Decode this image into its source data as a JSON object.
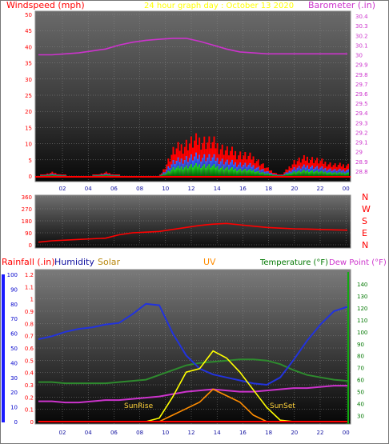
{
  "header": {
    "left_title": "Windspeed (mph)",
    "center_title": "24 hour graph day : October 13 2020",
    "right_title": "Barometer (.in)"
  },
  "colors": {
    "red": "#ff0000",
    "magenta": "#cc33cc",
    "yellow": "#ffff00",
    "blue": "#0000cc",
    "green": "#228b22",
    "orange": "#ff8c00",
    "dark_blue": "#1010a0",
    "olive": "#b8860b",
    "dark_green": "#007700"
  },
  "chart_data": [
    {
      "type": "line",
      "x_ticks": [
        "02",
        "04",
        "06",
        "08",
        "10",
        "12",
        "14",
        "16",
        "18",
        "20",
        "22",
        "00"
      ],
      "y_left_ticks": [
        "0",
        "5",
        "10",
        "15",
        "20",
        "25",
        "30",
        "35",
        "40",
        "45",
        "50"
      ],
      "y_left_range": [
        0,
        50
      ],
      "y_right_ticks": [
        "28.8",
        "28.9",
        "29",
        "29.1",
        "29.2",
        "29.3",
        "29.4",
        "29.5",
        "29.6",
        "29.7",
        "29.8",
        "29.9",
        "30",
        "30.1",
        "30.2",
        "30.3",
        "30.4"
      ],
      "y_right_range": [
        28.75,
        30.45
      ],
      "series": [
        {
          "name": "Barometer",
          "values": [
            30.0,
            30.0,
            30.01,
            30.02,
            30.04,
            30.06,
            30.1,
            30.13,
            30.15,
            30.16,
            30.17,
            30.17,
            30.14,
            30.1,
            30.06,
            30.03,
            30.02,
            30.01,
            30.01,
            30.01,
            30.01,
            30.01,
            30.01,
            30.01
          ]
        },
        {
          "name": "Windspeed",
          "values": [
            0,
            1,
            0,
            0,
            0,
            1,
            0,
            0,
            0,
            0,
            7,
            9,
            10,
            9,
            7,
            6,
            5,
            2,
            0,
            4,
            5,
            4,
            3,
            3
          ]
        }
      ]
    },
    {
      "type": "line",
      "x_ticks": [
        "02",
        "04",
        "06",
        "08",
        "10",
        "12",
        "14",
        "16",
        "18",
        "20",
        "22",
        "00"
      ],
      "y_left_ticks": [
        "0",
        "90",
        "180",
        "270",
        "360"
      ],
      "y_left_range": [
        0,
        360
      ],
      "y_right_ticks": [
        "N",
        "W",
        "S",
        "E",
        "N"
      ],
      "series": [
        {
          "name": "Wind direction",
          "values": [
            20,
            30,
            35,
            40,
            45,
            50,
            75,
            90,
            95,
            100,
            115,
            130,
            145,
            155,
            160,
            150,
            140,
            130,
            125,
            120,
            118,
            115,
            112,
            110
          ]
        }
      ]
    },
    {
      "type": "line",
      "x_ticks": [
        "02",
        "04",
        "06",
        "08",
        "10",
        "12",
        "14",
        "16",
        "18",
        "20",
        "22",
        "00"
      ],
      "legend": [
        "Rainfall (.in)",
        "Humidity",
        "Solar",
        "UV",
        "Temperature (°F)",
        "Dew Point (°F)"
      ],
      "y_rain_ticks": [
        "0",
        "0.1",
        "0.2",
        "0.3",
        "0.4",
        "0.5",
        "0.6",
        "0.7",
        "0.8",
        "0.9",
        "1",
        "1.1",
        "1.2"
      ],
      "y_rain_range": [
        0,
        1.2
      ],
      "y_humidity_ticks": [
        "0",
        "10",
        "20",
        "30",
        "40",
        "50",
        "60",
        "70",
        "80",
        "90",
        "100"
      ],
      "y_temp_ticks": [
        "30",
        "40",
        "50",
        "60",
        "70",
        "80",
        "90",
        "100",
        "110",
        "120",
        "130",
        "140"
      ],
      "y_temp_range": [
        25,
        148
      ],
      "annotations": [
        "SunRise",
        "SunSet"
      ],
      "series": [
        {
          "name": "Humidity",
          "values": [
            56,
            58,
            61,
            63,
            64,
            66,
            67,
            73,
            80,
            79,
            60,
            45,
            36,
            32,
            30,
            28,
            26,
            25,
            30,
            42,
            55,
            66,
            75,
            78
          ]
        },
        {
          "name": "Temperature (°F)",
          "values": [
            58,
            58,
            57,
            57,
            57,
            57,
            58,
            59,
            60,
            64,
            68,
            72,
            74,
            75,
            76,
            77,
            77,
            76,
            73,
            68,
            64,
            62,
            60,
            59
          ]
        },
        {
          "name": "Dew Point (°F)",
          "values": [
            42,
            42,
            41,
            41,
            42,
            43,
            43,
            44,
            45,
            46,
            48,
            50,
            51,
            52,
            51,
            50,
            50,
            51,
            52,
            53,
            53,
            54,
            55,
            55
          ]
        },
        {
          "name": "Solar",
          "values": [
            0,
            0,
            0,
            0,
            0,
            0,
            0,
            0,
            0,
            5,
            35,
            70,
            75,
            100,
            90,
            70,
            45,
            20,
            2,
            0,
            0,
            0,
            0,
            0
          ]
        },
        {
          "name": "UV",
          "values": [
            0,
            0,
            0,
            0,
            0,
            0,
            0,
            0,
            0,
            0,
            1,
            2,
            3,
            5,
            4,
            3,
            1,
            0,
            0,
            0,
            0,
            0,
            0,
            0
          ]
        },
        {
          "name": "Rainfall (.in)",
          "values": [
            0,
            0,
            0,
            0,
            0,
            0,
            0,
            0,
            0,
            0,
            0,
            0,
            0,
            0,
            0,
            0,
            0,
            0,
            0,
            0,
            0,
            0,
            0,
            0
          ]
        }
      ]
    }
  ]
}
